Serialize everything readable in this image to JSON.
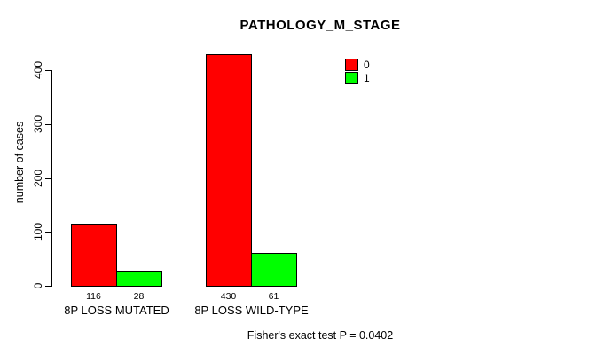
{
  "chart_data": {
    "type": "bar",
    "title": "PATHOLOGY_M_STAGE",
    "categories": [
      "8P LOSS MUTATED",
      "8P LOSS WILD-TYPE"
    ],
    "series": [
      {
        "name": "0",
        "color": "#FF0000",
        "values": [
          116,
          430
        ]
      },
      {
        "name": "1",
        "color": "#00FF00",
        "values": [
          28,
          61
        ]
      }
    ],
    "bar_value_labels": [
      [
        116,
        28
      ],
      [
        430,
        61
      ]
    ],
    "xlabel": "",
    "ylabel": "number of cases",
    "yticks": [
      0,
      100,
      200,
      300,
      400
    ],
    "ylim": [
      0,
      430
    ],
    "grid": false,
    "legend_position": "top-right",
    "legend_entries": [
      "0",
      "1"
    ],
    "annotation": "Fisher's exact test P = 0.0402",
    "bar_border_color": "#000000",
    "axis_color": "#000000",
    "background": "#FFFFFF"
  }
}
